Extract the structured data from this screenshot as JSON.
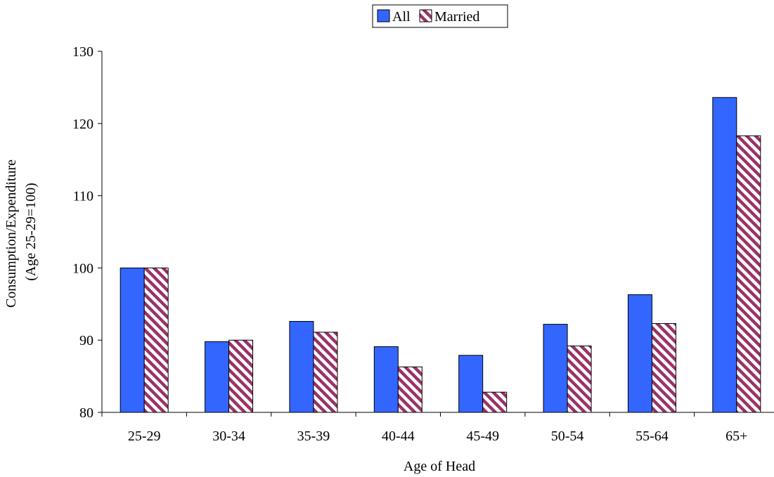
{
  "chart_data": {
    "type": "bar",
    "title": "",
    "xlabel": "Age of Head",
    "ylabel_lines": [
      "Consumption/Expenditure",
      "(Age 25-29=100)"
    ],
    "categories": [
      "25-29",
      "30-34",
      "35-39",
      "40-44",
      "45-49",
      "50-54",
      "55-64",
      "65+"
    ],
    "series": [
      {
        "name": "All",
        "values": [
          100.0,
          89.8,
          92.6,
          89.1,
          87.9,
          92.2,
          96.3,
          123.6
        ]
      },
      {
        "name": "Married",
        "values": [
          100.0,
          90.0,
          91.1,
          86.3,
          82.8,
          89.2,
          92.3,
          118.3
        ]
      }
    ],
    "ylim": [
      80,
      130
    ],
    "yticks": [
      80,
      90,
      100,
      110,
      120,
      130
    ],
    "grid": false,
    "legend_position": "top-center",
    "colors": {
      "All": "#3366ff",
      "Married_stripe": "#993366",
      "Married_bg": "#ffffff",
      "bar_outline": "#000000"
    }
  }
}
